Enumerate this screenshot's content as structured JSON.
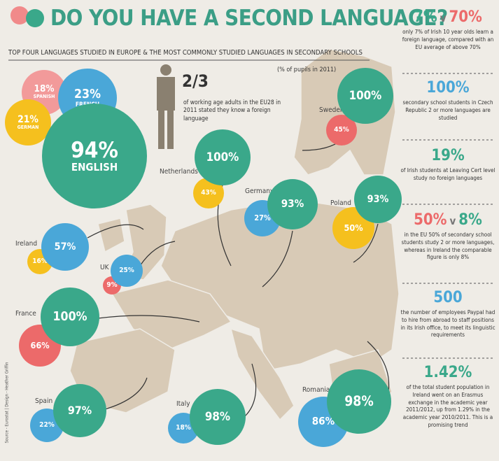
{
  "header": {
    "title": "DO YOU HAVE A SECOND LANGUAGE?",
    "subtitle": "TOP FOUR LANGUAGES STUDIED IN EUROPE & THE MOST COMMONLY STUDIED LANGUAGES IN SECONDARY SCHOOLS",
    "note": "(% of pupils in 2011)"
  },
  "languages": [
    {
      "value": "18%",
      "name": "SPANISH"
    },
    {
      "value": "23%",
      "name": "FRENCH"
    },
    {
      "value": "21%",
      "name": "GERMAN"
    },
    {
      "value": "94%",
      "name": "ENGLISH"
    }
  ],
  "stat": {
    "value": "2/3",
    "text": "of working age adults in the EU28 in 2011 stated they know a foreign language"
  },
  "countries": [
    {
      "name": "Sweden",
      "values": [
        "100%",
        "45%"
      ]
    },
    {
      "name": "Netherlands",
      "values": [
        "100%",
        "43%"
      ]
    },
    {
      "name": "Germany",
      "values": [
        "93%",
        "27%"
      ]
    },
    {
      "name": "Poland",
      "values": [
        "93%",
        "50%"
      ]
    },
    {
      "name": "Ireland",
      "values": [
        "57%",
        "16%"
      ]
    },
    {
      "name": "UK",
      "values": [
        "25%",
        "9%"
      ]
    },
    {
      "name": "France",
      "values": [
        "100%",
        "66%"
      ]
    },
    {
      "name": "Spain",
      "values": [
        "97%",
        "22%"
      ]
    },
    {
      "name": "Italy",
      "values": [
        "98%",
        "18%"
      ]
    },
    {
      "name": "Romania",
      "values": [
        "98%",
        "86%"
      ]
    }
  ],
  "sidebar": [
    {
      "headline": [
        "7%",
        "v",
        "70%"
      ],
      "text": "only 7% of Irish 10 year olds learn a foreign language, compared with an EU average of above 70%"
    },
    {
      "headline": [
        "100%"
      ],
      "text": "secondary school students in Czech Republic 2 or more languages are studied"
    },
    {
      "headline": [
        "19%"
      ],
      "text": "of Irish students at Leaving Cert level study no foreign languages"
    },
    {
      "headline": [
        "50%",
        "v",
        "8%"
      ],
      "text": "in the EU 50% of secondary school students study 2 or more languages, whereas in Ireland the comparable figure is only 8%"
    },
    {
      "headline": [
        "500"
      ],
      "text": "the number of employees Paypal had to hire from abroad to staff positions in its Irish office, to meet its linguistic requirements"
    },
    {
      "headline": [
        "1.42%"
      ],
      "text": "of the total student population in Ireland went on an Erasmus exchange in the academic year 2011/2012, up from 1.29% in the academic year 2010/2011. This is a promising trend"
    }
  ],
  "source": "Source - Eurostat | Design - Heather Griffin"
}
